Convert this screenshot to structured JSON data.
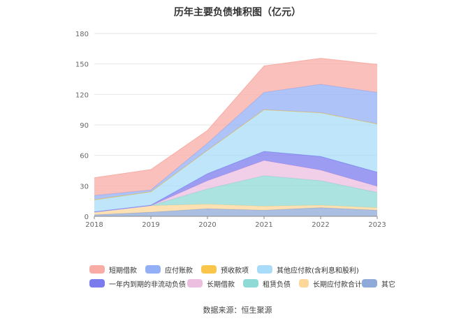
{
  "chart_data": {
    "type": "area",
    "stacked": true,
    "title": "历年主要负债堆积图（亿元）",
    "xlabel": "",
    "ylabel": "",
    "x": [
      "2018",
      "2019",
      "2020",
      "2021",
      "2022",
      "2023"
    ],
    "ylim": [
      0,
      180
    ],
    "yticks": [
      "0",
      "30",
      "60",
      "90",
      "120",
      "150",
      "180"
    ],
    "grid": true,
    "legend_position": "bottom",
    "series": [
      {
        "name": "其它",
        "color": "#8fa9d8",
        "values": [
          1.5,
          4.0,
          7.5,
          6.0,
          8.5,
          6.0
        ]
      },
      {
        "name": "长期应付款合计",
        "color": "#fcd79a",
        "values": [
          2.5,
          6.5,
          4.5,
          4.0,
          2.5,
          2.5
        ]
      },
      {
        "name": "租赁负债",
        "color": "#8fd9d6",
        "values": [
          0.0,
          0.0,
          15.0,
          30.0,
          24.0,
          15.0
        ]
      },
      {
        "name": "长期借款",
        "color": "#ecbfe0",
        "values": [
          0.0,
          0.0,
          8.0,
          15.0,
          10.5,
          6.0
        ]
      },
      {
        "name": "一年内到期的非流动负债",
        "color": "#7b7bee",
        "values": [
          0.5,
          0.5,
          7.0,
          9.0,
          13.5,
          14.0
        ]
      },
      {
        "name": "其他应付款(含利息和股利)",
        "color": "#a8dcf8",
        "values": [
          11.5,
          13.0,
          23.0,
          41.0,
          43.0,
          47.5
        ]
      },
      {
        "name": "预收款项",
        "color": "#f9c54a",
        "values": [
          0.5,
          0.3,
          0.0,
          0.0,
          0.0,
          0.0
        ]
      },
      {
        "name": "应付账款",
        "color": "#93b0f7",
        "values": [
          4.0,
          1.7,
          7.0,
          17.0,
          28.0,
          31.0
        ]
      },
      {
        "name": "短期借款",
        "color": "#f8aca5",
        "values": [
          17.5,
          20.0,
          12.5,
          26.0,
          25.5,
          27.5
        ]
      }
    ],
    "legend_order": [
      "短期借款",
      "应付账款",
      "预收款项",
      "其他应付款(含利息和股利)",
      "一年内到期的非流动负债",
      "长期借款",
      "租赁负债",
      "长期应付款合计",
      "其它"
    ],
    "source": "数据来源：恒生聚源"
  }
}
